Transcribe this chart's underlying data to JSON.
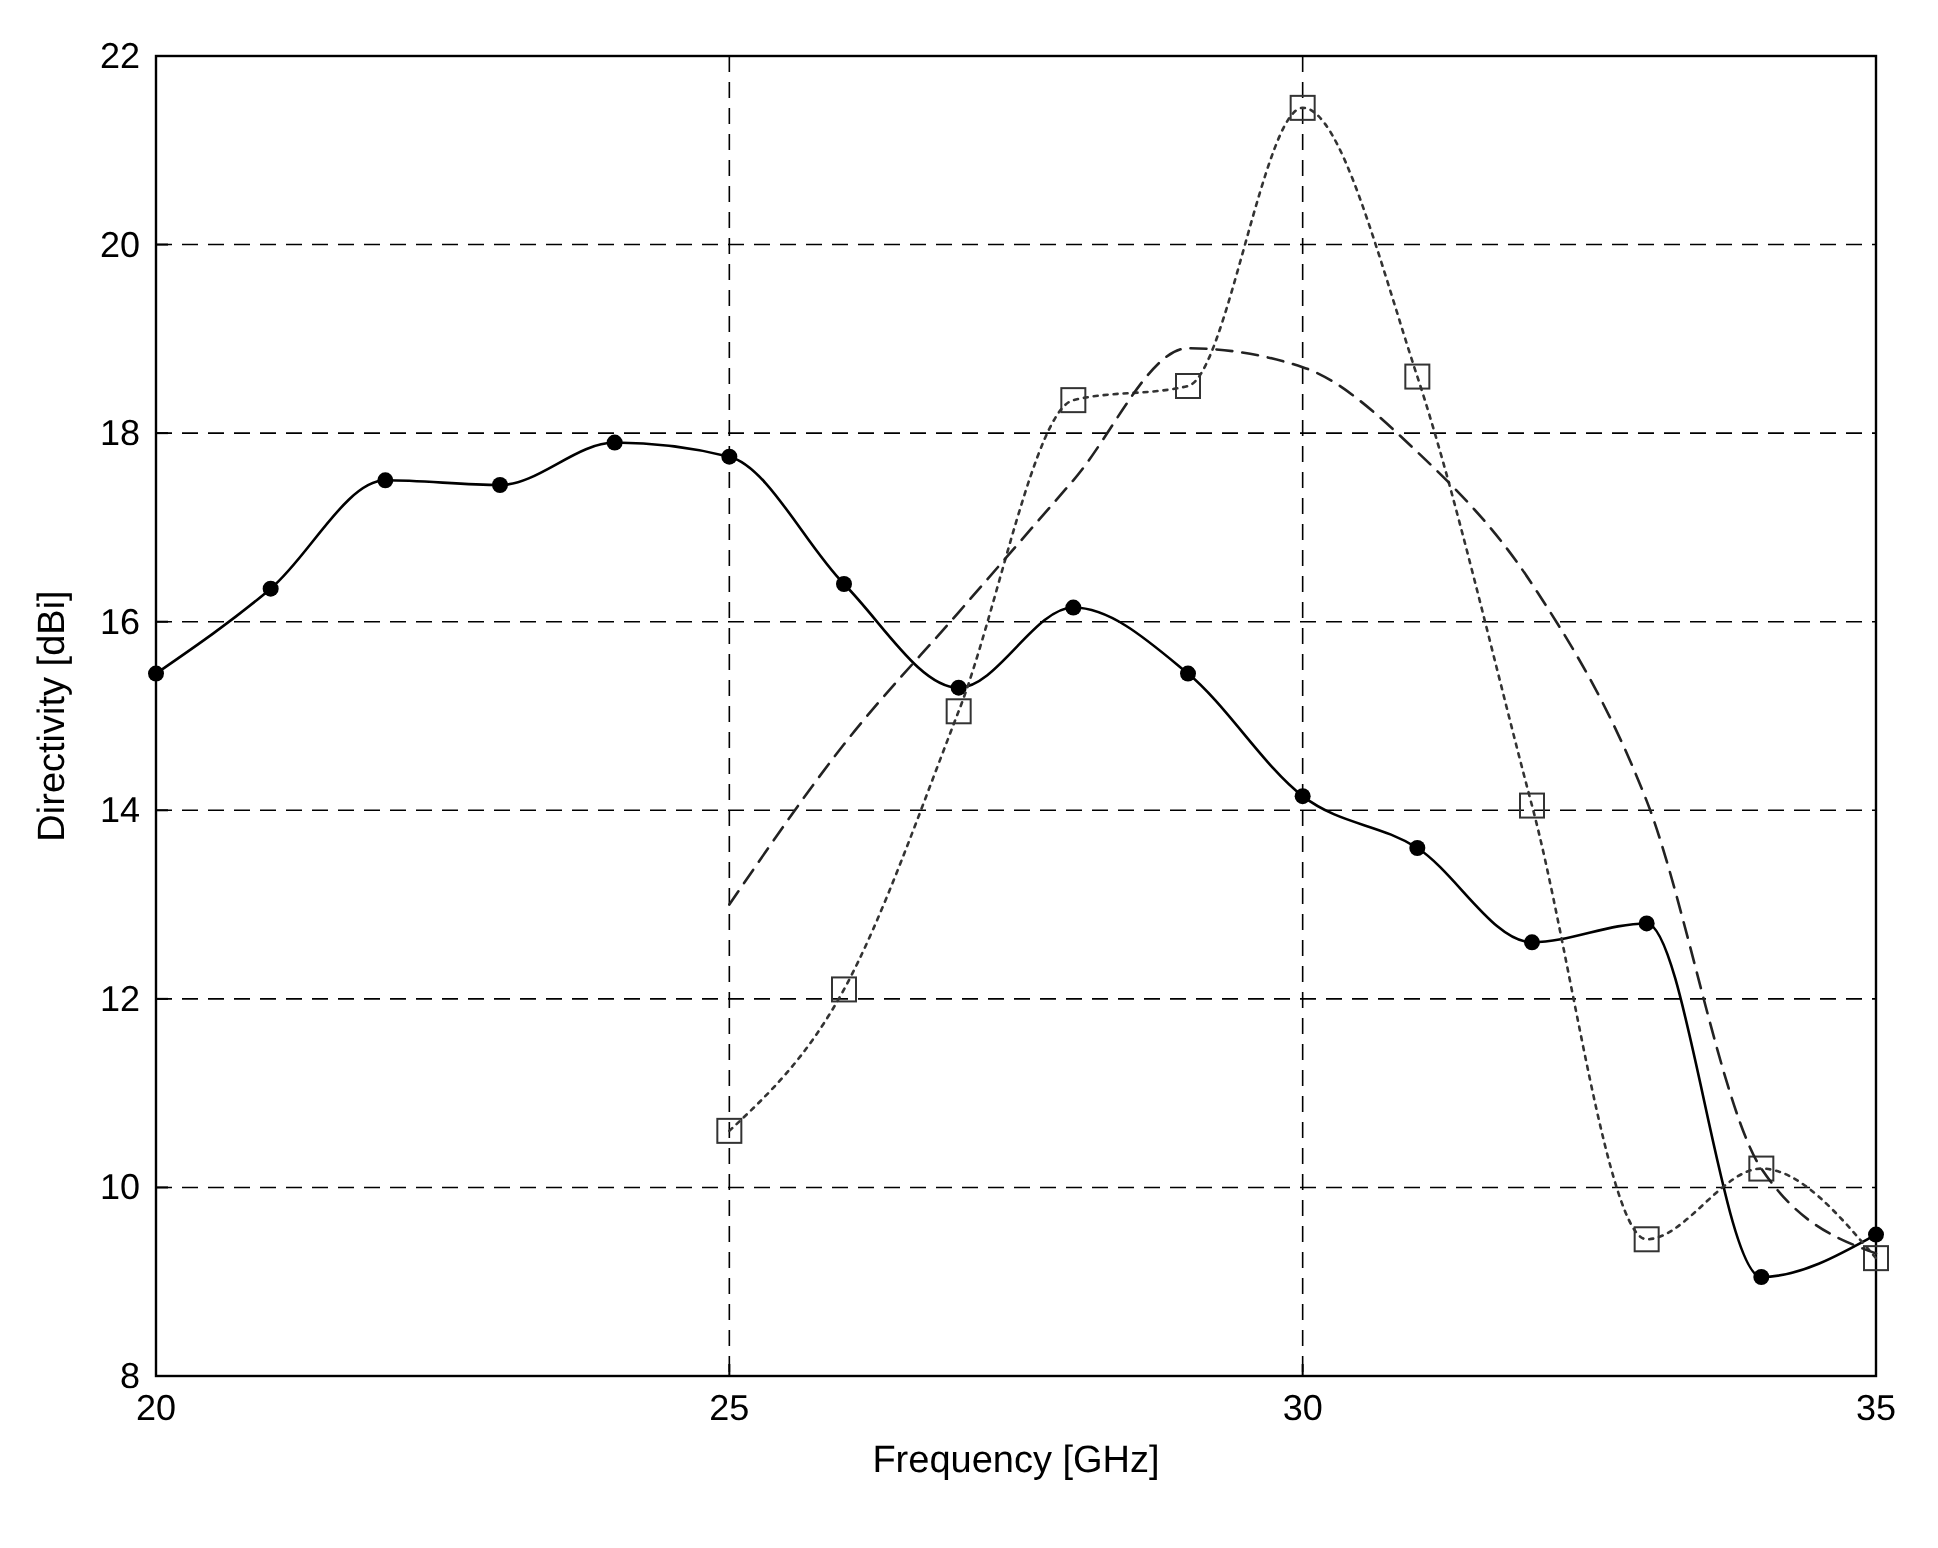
{
  "chart_data": {
    "type": "line",
    "xlabel": "Frequency [GHz]",
    "ylabel": "Directivity [dBi]",
    "xlim": [
      20,
      35
    ],
    "xticks": [
      20,
      25,
      30,
      35
    ],
    "ylim": [
      8,
      22
    ],
    "yticks": [
      8,
      10,
      12,
      14,
      16,
      18,
      20,
      22
    ],
    "grid": true,
    "series": [
      {
        "color": "#000000",
        "marker": "circle",
        "line_style": "solid",
        "x": [
          20,
          21,
          22,
          23,
          24,
          25,
          26,
          27,
          28,
          29,
          30,
          31,
          32,
          33,
          34,
          35
        ],
        "values": [
          15.45,
          16.35,
          17.5,
          17.45,
          17.9,
          17.75,
          16.4,
          15.3,
          16.15,
          15.45,
          14.15,
          13.6,
          12.6,
          12.8,
          9.05,
          9.5
        ]
      },
      {
        "color": "#333333",
        "marker": "square",
        "line_style": "dotted",
        "x": [
          25,
          26,
          27,
          28,
          29,
          30,
          31,
          32,
          33,
          34,
          35
        ],
        "values": [
          10.6,
          12.1,
          15.05,
          18.35,
          18.5,
          21.45,
          18.6,
          14.05,
          9.45,
          10.2,
          9.25
        ]
      },
      {
        "color": "#222222",
        "marker": "none",
        "line_style": "dashed",
        "x": [
          25,
          26,
          27,
          28,
          29,
          30,
          31,
          32,
          33,
          34,
          35
        ],
        "values": [
          13.0,
          14.7,
          16.1,
          17.5,
          18.9,
          18.7,
          17.8,
          16.4,
          14.1,
          10.2,
          9.3
        ]
      }
    ]
  }
}
